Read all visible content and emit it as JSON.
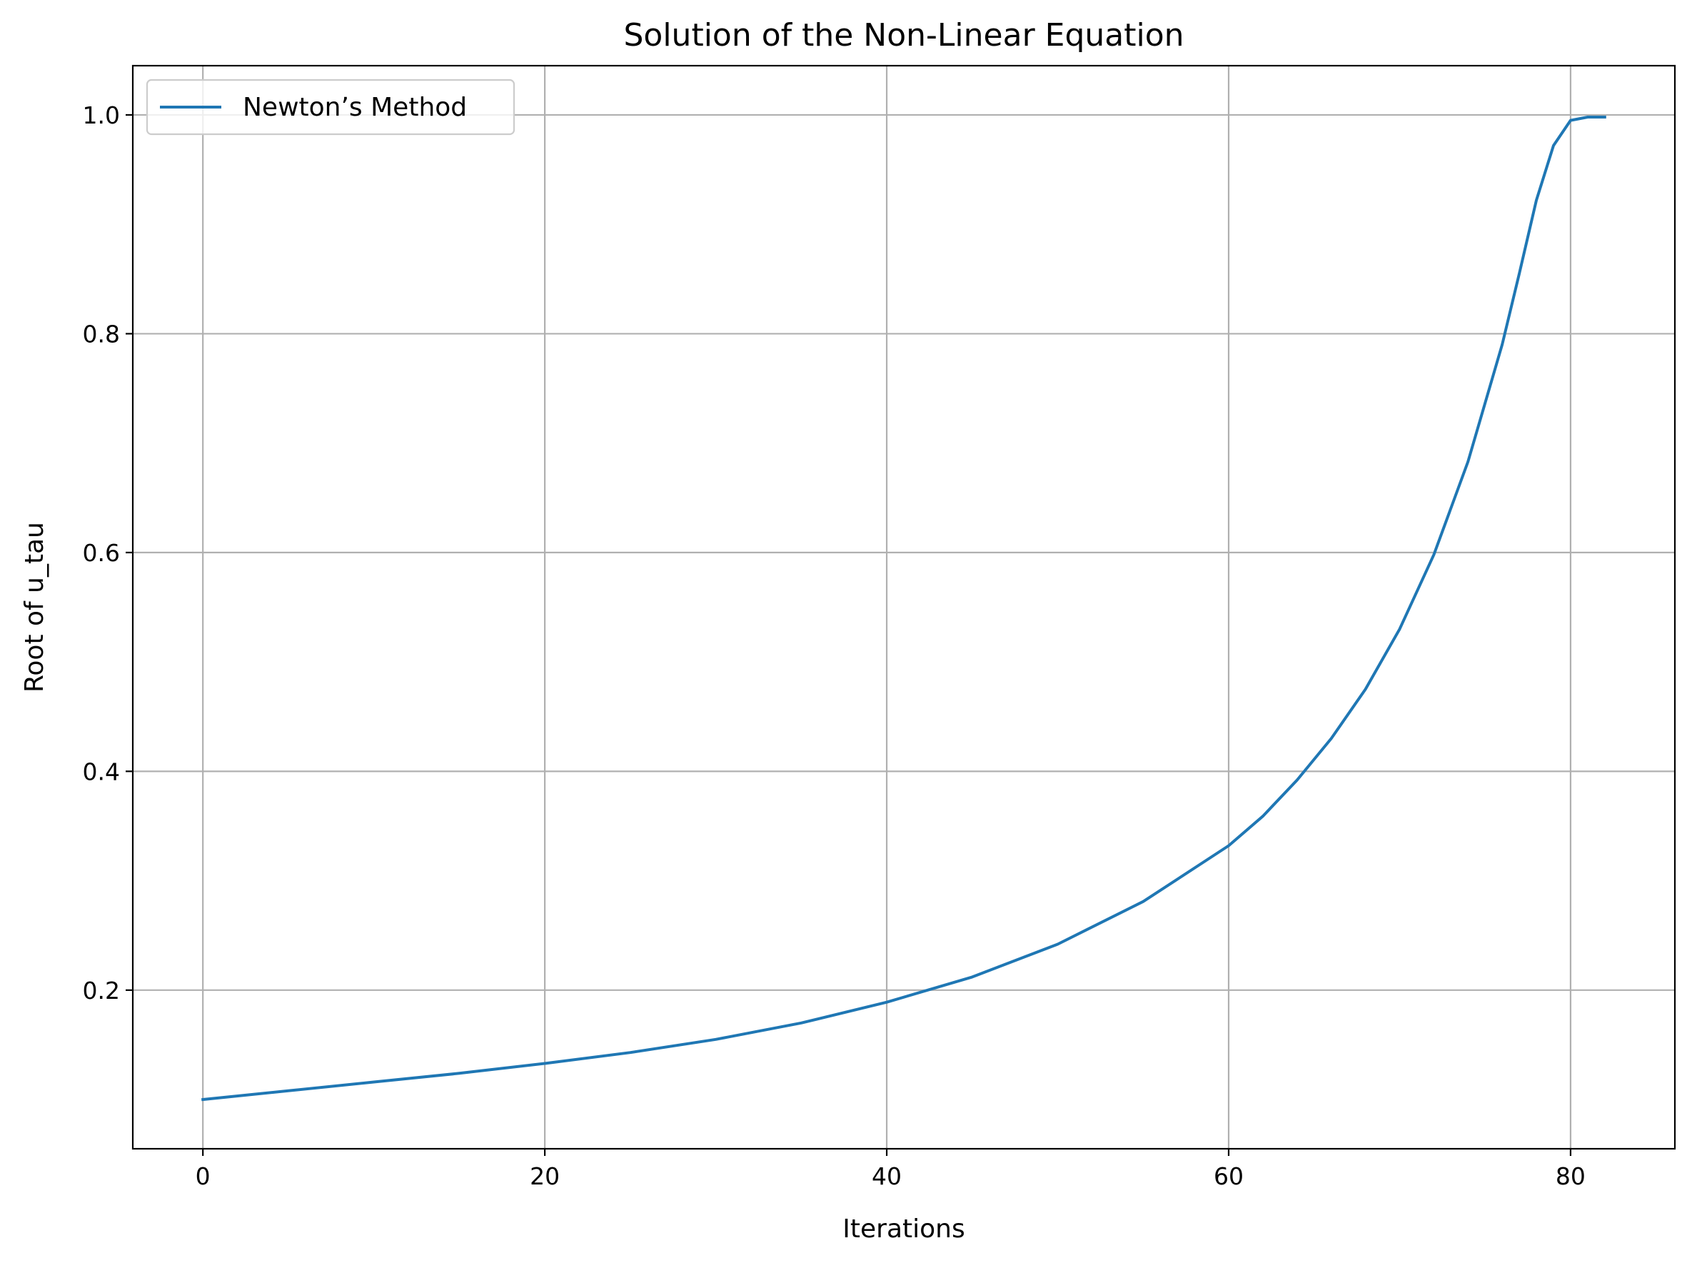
{
  "chart_data": {
    "type": "line",
    "title": "Solution of the Non-Linear Equation",
    "xlabel": "Iterations",
    "ylabel": "Root of u_tau",
    "xlim": [
      -4.1,
      86.1
    ],
    "ylim": [
      0.055,
      1.045
    ],
    "xticks": [
      0,
      20,
      40,
      60,
      80
    ],
    "yticks": [
      0.2,
      0.4,
      0.6,
      0.8,
      1.0
    ],
    "xtick_labels": [
      "0",
      "20",
      "40",
      "60",
      "80"
    ],
    "ytick_labels": [
      "0.2",
      "0.4",
      "0.6",
      "0.8",
      "1.0"
    ],
    "grid": true,
    "legend_placement": "top-left",
    "series": [
      {
        "name": "Newton’s Method",
        "color": "#1f77b4",
        "x": [
          0,
          5,
          10,
          15,
          20,
          25,
          30,
          35,
          40,
          45,
          50,
          55,
          60,
          62,
          64,
          66,
          68,
          70,
          72,
          74,
          76,
          77,
          78,
          79,
          80,
          81,
          82
        ],
        "y": [
          0.1,
          0.108,
          0.116,
          0.124,
          0.133,
          0.143,
          0.155,
          0.17,
          0.189,
          0.212,
          0.242,
          0.281,
          0.332,
          0.359,
          0.392,
          0.43,
          0.475,
          0.53,
          0.598,
          0.683,
          0.79,
          0.855,
          0.922,
          0.972,
          0.995,
          0.998,
          0.998
        ]
      }
    ]
  }
}
